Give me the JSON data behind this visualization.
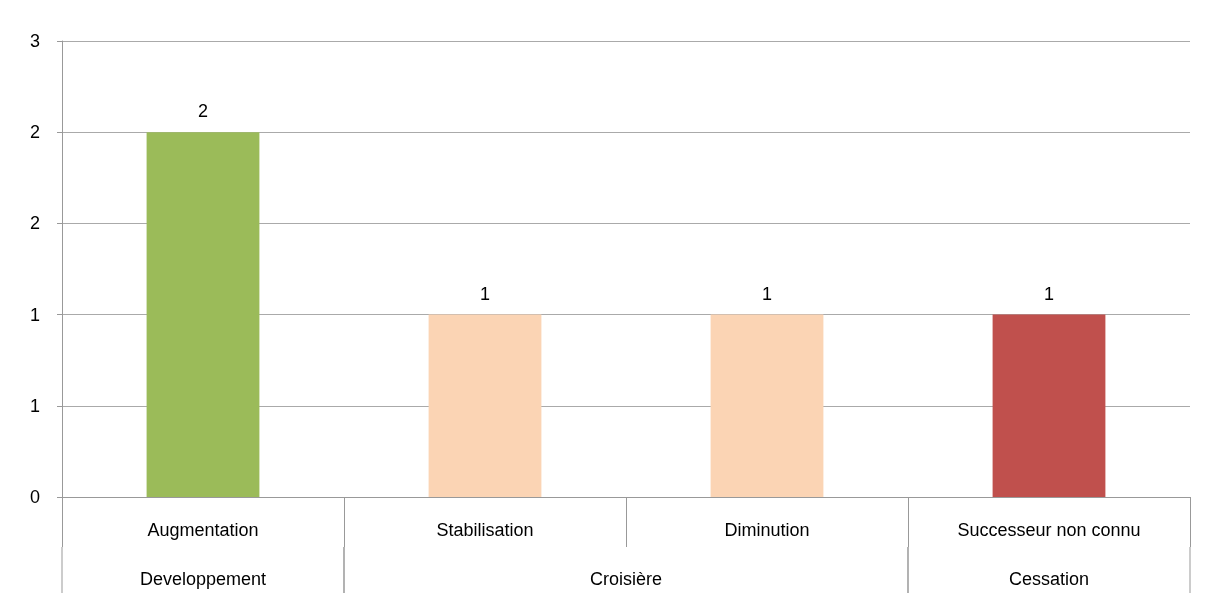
{
  "chart_data": {
    "type": "bar",
    "categories": [
      "Augmentation",
      "Stabilisation",
      "Diminution",
      "Successeur non connu"
    ],
    "values": [
      2,
      1,
      1,
      1
    ],
    "colors": [
      "#9bbb59",
      "#fbd4b4",
      "#fbd4b4",
      "#c0504d"
    ],
    "ylim": [
      0,
      2.5
    ],
    "yticks": [
      0,
      {
        "value": 0.5,
        "label": "1"
      },
      1,
      {
        "value": 1.5,
        "label": "2"
      },
      2,
      {
        "value": 2.5,
        "label": "3"
      }
    ],
    "grid": "y",
    "data_labels": true,
    "annotations": [
      "Developpement",
      "Croisière",
      "Cessation"
    ]
  }
}
